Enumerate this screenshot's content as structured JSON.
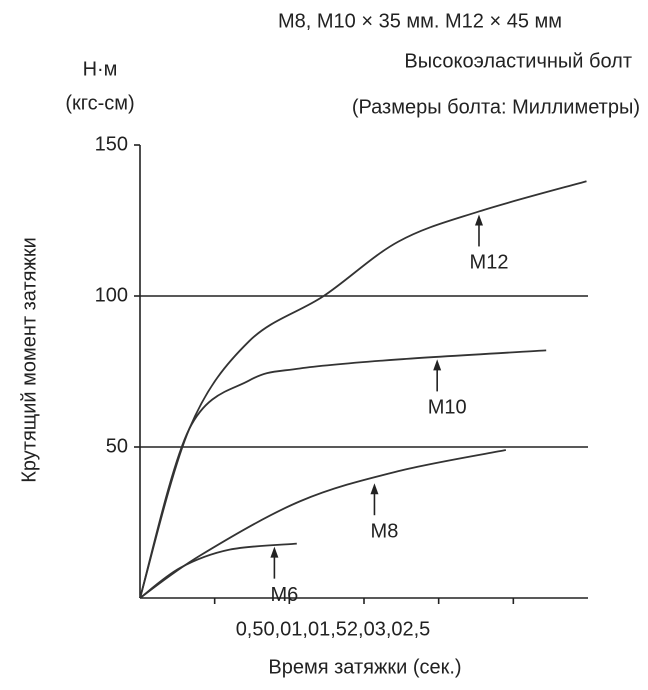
{
  "chart_data": {
    "type": "line",
    "title": "M8, M10 × 35 мм. M12 × 45 мм",
    "subtitle": "Высокоэластичный болт",
    "note": "(Размеры болта: Миллиметры)",
    "y_unit": "Н·м",
    "y_unit2": "(кгс-см)",
    "y_label": "Крутящий момент затяжки",
    "x_label": "Время затяжки (сек.)",
    "x_tick_text": "0,50,01,01,52,03,02,5",
    "xlim": [
      0,
      3
    ],
    "xticks": [
      0.5,
      1,
      1.5,
      2,
      2.5
    ],
    "ylim": [
      0,
      150
    ],
    "yticks": [
      50,
      100,
      150
    ],
    "grid": true,
    "color": "#333333",
    "series": [
      {
        "name": "M12",
        "x": [
          0,
          0.33,
          0.73,
          1.23,
          1.73,
          2.27,
          2.99
        ],
        "values": [
          0,
          56,
          85,
          100,
          118,
          128,
          138
        ],
        "label_at": [
          2.27,
          128
        ]
      },
      {
        "name": "M10",
        "x": [
          0,
          0.33,
          0.73,
          1.07,
          1.73,
          2.72
        ],
        "values": [
          0,
          56,
          72,
          76,
          79,
          82
        ],
        "label_at": [
          1.99,
          80
        ]
      },
      {
        "name": "M8",
        "x": [
          0,
          0.4,
          1.07,
          1.73,
          2.45
        ],
        "values": [
          0,
          14,
          32,
          42,
          49
        ],
        "label_at": [
          1.57,
          39
        ]
      },
      {
        "name": "M6",
        "x": [
          0,
          0.27,
          0.6,
          1.05
        ],
        "values": [
          0,
          10,
          16,
          18
        ],
        "label_at": [
          0.9,
          18
        ]
      }
    ]
  }
}
